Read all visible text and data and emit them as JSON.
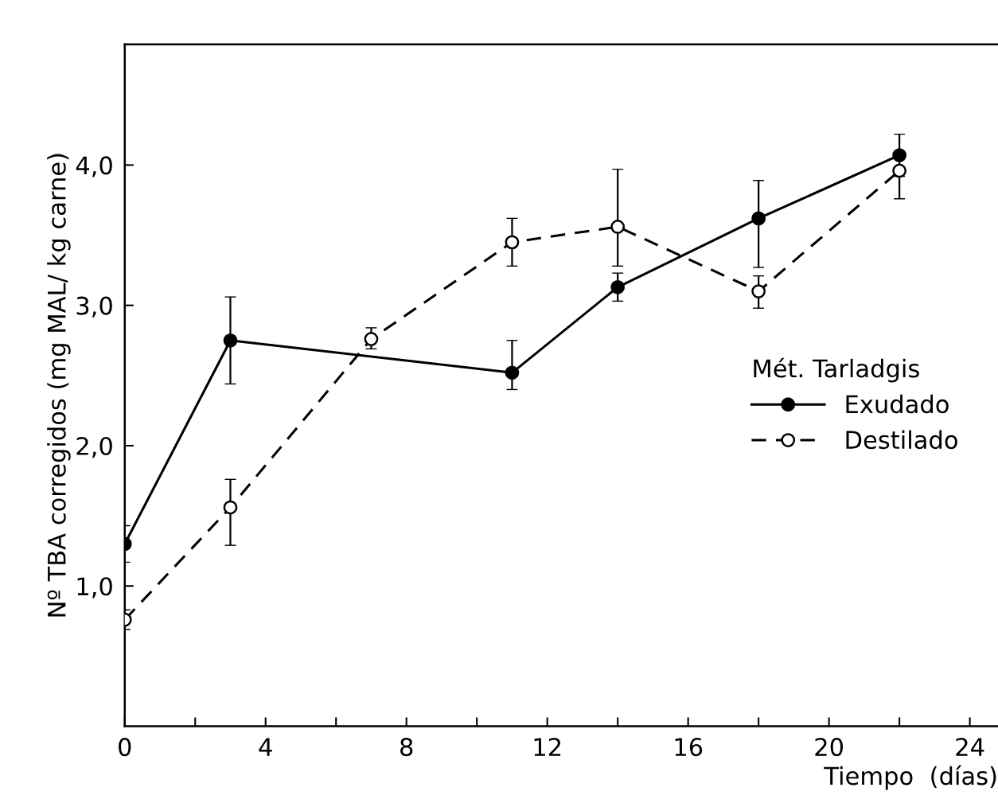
{
  "chart_data": {
    "type": "line",
    "xlabel": "Tiempo  (días)",
    "ylabel": "Nº TBA corregidos (mg MAL/ kg carne)",
    "legend_title": "Mét. Tarladgis",
    "legend": "right",
    "grid": false,
    "marker": "circle",
    "xlim": [
      0,
      24.8
    ],
    "ylim": [
      0,
      4.86
    ],
    "xticks": [
      0,
      {
        "value": 2,
        "label": null
      },
      4,
      {
        "value": 6,
        "label": null
      },
      8,
      {
        "value": 10,
        "label": null
      },
      12,
      {
        "value": 14,
        "label": null
      },
      16,
      {
        "value": 18,
        "label": null
      },
      20,
      {
        "value": 22,
        "label": null
      },
      24
    ],
    "yticks": [
      {
        "value": 1,
        "label": "1,0"
      },
      {
        "value": 2,
        "label": "2,0"
      },
      {
        "value": 3,
        "label": "3,0"
      },
      {
        "value": 4,
        "label": "4,0"
      }
    ],
    "series": [
      {
        "name": "Exudado",
        "color": "#000000",
        "line_style": "solid",
        "x": [
          0,
          3,
          11,
          14,
          18,
          22
        ],
        "values": [
          1.3,
          2.75,
          2.52,
          3.13,
          3.62,
          4.07
        ],
        "errors": [
          0.13,
          0.31,
          [
            2.4,
            2.75
          ],
          [
            3.03,
            3.23
          ],
          [
            3.27,
            3.89
          ],
          0.15
        ]
      },
      {
        "name": "Destilado",
        "color": "#000000",
        "line_style": "dashed",
        "x": [
          0,
          3,
          7,
          11,
          14,
          18,
          22
        ],
        "values": [
          0.76,
          1.56,
          2.76,
          3.45,
          3.56,
          3.1,
          3.96
        ],
        "errors": [
          0.07,
          [
            1.29,
            1.76
          ],
          [
            2.69,
            2.84
          ],
          [
            3.28,
            3.62
          ],
          [
            3.28,
            3.97
          ],
          [
            2.98,
            3.21
          ],
          [
            3.76,
            3.96
          ]
        ]
      }
    ]
  }
}
